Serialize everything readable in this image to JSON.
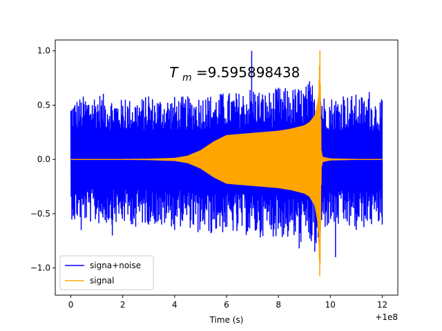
{
  "chart_data": {
    "type": "line",
    "title": "",
    "annotation": {
      "prefix": "T",
      "subscript": "m",
      "value": "=9.595898438",
      "x": 4.6,
      "y": 0.8
    },
    "xlabel": "Time (s)",
    "ylabel": "",
    "x_offset_label": "+1e8",
    "xlim": [
      -0.6,
      12.6
    ],
    "ylim": [
      -1.25,
      1.1
    ],
    "x_ticks": [
      0,
      2,
      4,
      6,
      8,
      10,
      12
    ],
    "x_tick_labels": [
      "0",
      "2",
      "4",
      "6",
      "8",
      "10",
      "12"
    ],
    "y_ticks": [
      -1.0,
      -0.5,
      0.0,
      0.5,
      1.0
    ],
    "y_tick_labels": [
      "−1.0",
      "−0.5",
      "0.0",
      "0.5",
      "1.0"
    ],
    "grid": false,
    "legend_position": "lower-left",
    "series": [
      {
        "name": "signa+noise",
        "color": "#0000ff",
        "envelope": {
          "x": [
            0,
            1,
            2,
            3,
            4,
            4.5,
            5,
            5.5,
            6,
            6.5,
            7,
            7.5,
            8,
            8.5,
            9,
            9.3,
            9.5,
            9.6,
            9.7,
            10,
            11,
            12
          ],
          "upper": [
            0.55,
            0.62,
            0.55,
            0.58,
            0.58,
            0.58,
            0.6,
            0.6,
            0.62,
            0.62,
            0.68,
            0.62,
            0.66,
            0.66,
            0.68,
            0.72,
            0.75,
            0.75,
            0.6,
            0.58,
            0.6,
            0.55
          ],
          "lower": [
            -0.55,
            -0.6,
            -0.6,
            -0.6,
            -0.62,
            -0.62,
            -0.68,
            -0.68,
            -0.68,
            -0.68,
            -0.72,
            -0.7,
            -0.72,
            -0.75,
            -0.78,
            -0.8,
            -0.85,
            -0.85,
            -0.65,
            -0.62,
            -0.65,
            -0.6
          ]
        },
        "spikes": [
          {
            "x": 0.05,
            "y": 0.46
          },
          {
            "x": 0.15,
            "y": -0.55
          },
          {
            "x": 0.4,
            "y": -0.65
          },
          {
            "x": 1.2,
            "y": 0.5
          },
          {
            "x": 1.6,
            "y": -0.7
          },
          {
            "x": 2.1,
            "y": 0.55
          },
          {
            "x": 2.5,
            "y": -0.62
          },
          {
            "x": 3.0,
            "y": 0.58
          },
          {
            "x": 3.5,
            "y": -0.6
          },
          {
            "x": 4.0,
            "y": -0.65
          },
          {
            "x": 4.9,
            "y": -0.67
          },
          {
            "x": 5.2,
            "y": 0.55
          },
          {
            "x": 5.4,
            "y": -0.68
          },
          {
            "x": 5.8,
            "y": 0.6
          },
          {
            "x": 6.4,
            "y": -0.66
          },
          {
            "x": 6.97,
            "y": 1.0
          },
          {
            "x": 7.3,
            "y": -0.72
          },
          {
            "x": 8.0,
            "y": 0.66
          },
          {
            "x": 8.8,
            "y": -0.82
          },
          {
            "x": 9.2,
            "y": 0.72
          },
          {
            "x": 9.4,
            "y": -0.85
          },
          {
            "x": 10.2,
            "y": -0.9
          },
          {
            "x": 10.5,
            "y": 0.58
          },
          {
            "x": 11.0,
            "y": -0.65
          },
          {
            "x": 11.5,
            "y": 0.62
          },
          {
            "x": 12.0,
            "y": -0.6
          }
        ]
      },
      {
        "name": "signal",
        "color": "#ffa500",
        "envelope": {
          "x": [
            0,
            1,
            2,
            3,
            4,
            4.5,
            5,
            5.5,
            6,
            6.5,
            7,
            7.5,
            8,
            8.5,
            9,
            9.2,
            9.4,
            9.5,
            9.55,
            9.6,
            9.65,
            9.7,
            10,
            11,
            12
          ],
          "upper": [
            0.0,
            0.0,
            0.0,
            0.002,
            0.01,
            0.03,
            0.08,
            0.16,
            0.22,
            0.23,
            0.24,
            0.25,
            0.26,
            0.28,
            0.31,
            0.34,
            0.4,
            0.5,
            0.6,
            1.0,
            0.08,
            0.02,
            0.005,
            0.0,
            0.0
          ],
          "lower": [
            0.0,
            0.0,
            0.0,
            -0.002,
            -0.01,
            -0.03,
            -0.08,
            -0.16,
            -0.22,
            -0.23,
            -0.24,
            -0.25,
            -0.26,
            -0.28,
            -0.31,
            -0.34,
            -0.42,
            -0.55,
            -0.7,
            -1.15,
            -0.08,
            -0.02,
            -0.005,
            0.0,
            0.0
          ]
        }
      }
    ]
  }
}
